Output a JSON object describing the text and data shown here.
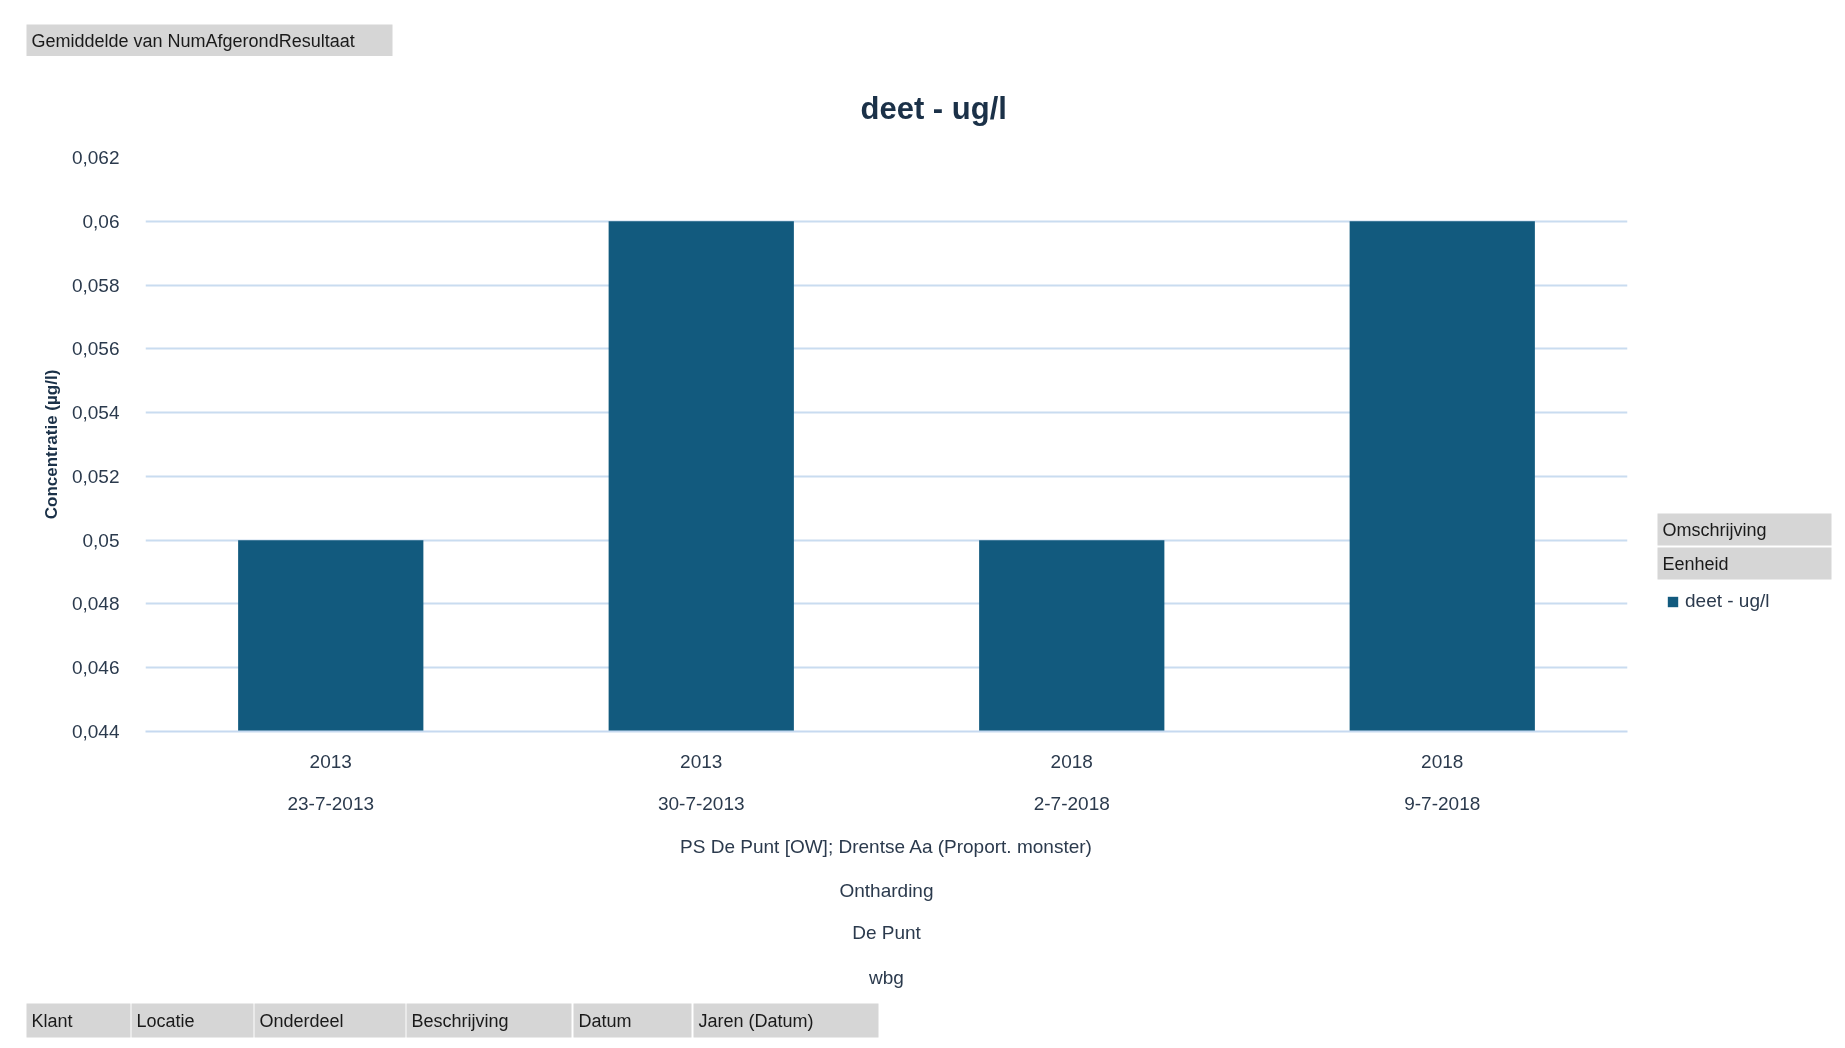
{
  "chart_data": {
    "type": "bar",
    "title": "deet - ug/l",
    "ylabel": "Concentratie (µg/l)",
    "categories": [
      "2013\n23-7-2013",
      "2013\n30-7-2013",
      "2018\n2-7-2018",
      "2018\n9-7-2018"
    ],
    "series": [
      {
        "name": "deet - ug/l",
        "color": "#125a7e",
        "values": [
          0.05,
          0.06,
          0.05,
          0.06
        ]
      }
    ],
    "ylim": [
      0.044,
      0.062
    ],
    "yticks": [
      {
        "value": 0.044,
        "label": "0,044"
      },
      {
        "value": 0.046,
        "label": "0,046"
      },
      {
        "value": 0.048,
        "label": "0,048"
      },
      {
        "value": 0.05,
        "label": "0,05"
      },
      {
        "value": 0.052,
        "label": "0,052"
      },
      {
        "value": 0.054,
        "label": "0,054"
      },
      {
        "value": 0.056,
        "label": "0,056"
      },
      {
        "value": 0.058,
        "label": "0,058"
      },
      {
        "value": 0.06,
        "label": "0,06"
      },
      {
        "value": 0.062,
        "label": "0,062"
      }
    ],
    "grid": "y",
    "legend": "right",
    "annotations": [
      "Gemiddelde van NumAfgerondResultaat",
      "PS De Punt [OW]; Drentse Aa (Proport. monster)",
      "Ontharding",
      "De Punt",
      "wbg",
      "Omschrijving",
      "Eenheid",
      "Klant",
      "Locatie",
      "Onderdeel",
      "Beschrijving",
      "Datum",
      "Jaren (Datum)"
    ]
  }
}
